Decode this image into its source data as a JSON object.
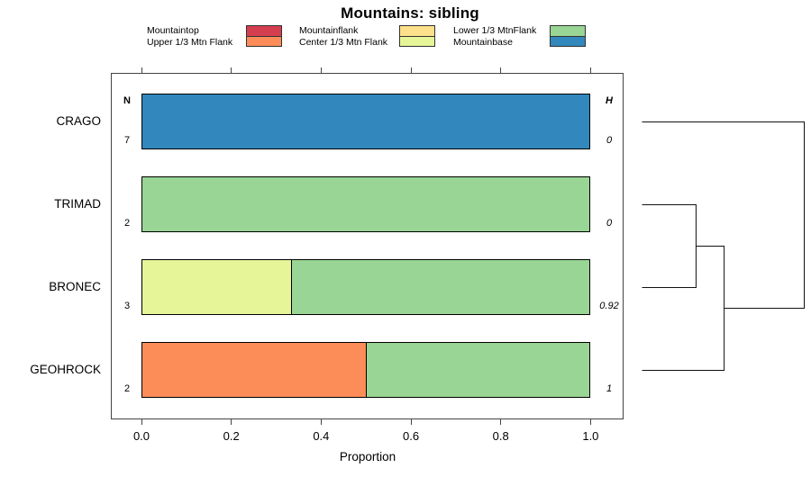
{
  "chart_data": {
    "type": "bar",
    "orientation": "horizontal",
    "stacked": true,
    "title": "Mountains: sibling",
    "xlabel": "Proportion",
    "xlim": [
      0,
      1
    ],
    "x_ticks": [
      "0.0",
      "0.2",
      "0.4",
      "0.6",
      "0.8",
      "1.0"
    ],
    "grid": false,
    "legend_position": "top",
    "n_header": "N",
    "h_header": "H",
    "classes": [
      {
        "name": "Mountaintop",
        "color": "#D53E4F"
      },
      {
        "name": "Upper 1/3 Mtn Flank",
        "color": "#FC8D59"
      },
      {
        "name": "Mountainflank",
        "color": "#FEE08B"
      },
      {
        "name": "Center 1/3 Mtn Flank",
        "color": "#E6F598"
      },
      {
        "name": "Lower 1/3 MtnFlank",
        "color": "#99D594"
      },
      {
        "name": "Mountainbase",
        "color": "#3288BD"
      }
    ],
    "categories": [
      "CRAGO",
      "TRIMAD",
      "BRONEC",
      "GEOHROCK"
    ],
    "n_values": [
      "7",
      "2",
      "3",
      "2"
    ],
    "h_values": [
      "0",
      "0",
      "0.92",
      "1"
    ],
    "bars": [
      {
        "category": "CRAGO",
        "segments": [
          {
            "class": "Mountainbase",
            "proportion": 1.0
          }
        ]
      },
      {
        "category": "TRIMAD",
        "segments": [
          {
            "class": "Lower 1/3 MtnFlank",
            "proportion": 1.0
          }
        ]
      },
      {
        "category": "BRONEC",
        "segments": [
          {
            "class": "Center 1/3 Mtn Flank",
            "proportion": 0.333
          },
          {
            "class": "Lower 1/3 MtnFlank",
            "proportion": 0.667
          }
        ]
      },
      {
        "category": "GEOHROCK",
        "segments": [
          {
            "class": "Upper 1/3 Mtn Flank",
            "proportion": 0.5
          },
          {
            "class": "Lower 1/3 MtnFlank",
            "proportion": 0.5
          }
        ]
      }
    ],
    "dendrogram": {
      "leaves": [
        "CRAGO",
        "TRIMAD",
        "BRONEC",
        "GEOHROCK"
      ],
      "links": [
        {
          "id": "node1",
          "a": "TRIMAD",
          "b": "BRONEC",
          "height": 0.333
        },
        {
          "id": "node2",
          "a": "node1",
          "b": "GEOHROCK",
          "height": 0.506
        },
        {
          "id": "node3",
          "a": "CRAGO",
          "b": "node2",
          "height": 1.0
        }
      ]
    }
  }
}
